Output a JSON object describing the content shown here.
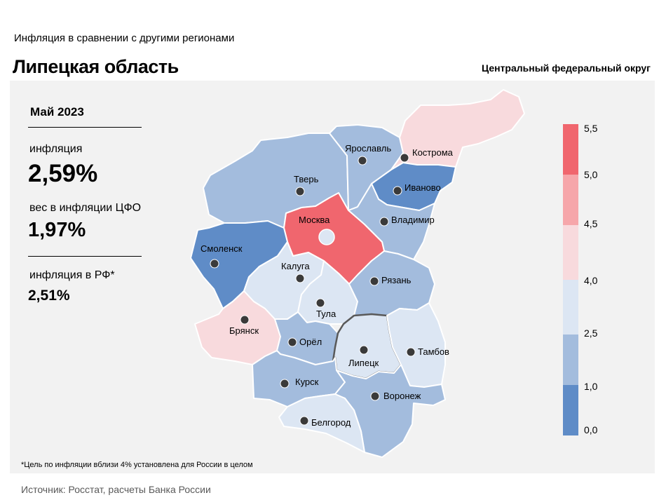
{
  "header": {
    "subtitle": "Инфляция  в сравнении  с другими  регионами",
    "title": "Липецкая область",
    "district": "Центральный федеральный округ"
  },
  "stats": {
    "period": "Май 2023",
    "inflation_label": "инфляция",
    "inflation_value": "2,59%",
    "weight_label": "вес в инфляции  ЦФО",
    "weight_value": "1,97%",
    "rf_label": "инфляция  в РФ*",
    "rf_value": "2,51%"
  },
  "legend": {
    "ticks": [
      "5,5",
      "5,0",
      "4,5",
      "4,0",
      "2,5",
      "1,0",
      "0,0"
    ],
    "colors": [
      "#f0666e",
      "#f6a6aa",
      "#f8dadd",
      "#dce6f3",
      "#a3bcdd",
      "#5f8cc7"
    ]
  },
  "map": {
    "regions": [
      {
        "id": "tver",
        "label": "Тверь",
        "color": "#a3bcdd"
      },
      {
        "id": "yaroslavl",
        "label": "Ярославль",
        "color": "#a3bcdd"
      },
      {
        "id": "kostroma",
        "label": "Кострома",
        "color": "#f8dadd"
      },
      {
        "id": "ivanovo",
        "label": "Иваново",
        "color": "#5f8cc7"
      },
      {
        "id": "vladimir",
        "label": "Владимир",
        "color": "#a3bcdd"
      },
      {
        "id": "moskva",
        "label": "Москва",
        "color": "#f0666e"
      },
      {
        "id": "smolensk",
        "label": "Смоленск",
        "color": "#5f8cc7"
      },
      {
        "id": "kaluga",
        "label": "Калуга",
        "color": "#dce6f3"
      },
      {
        "id": "tula",
        "label": "Тула",
        "color": "#dce6f3"
      },
      {
        "id": "ryazan",
        "label": "Рязань",
        "color": "#a3bcdd"
      },
      {
        "id": "bryansk",
        "label": "Брянск",
        "color": "#f8dadd"
      },
      {
        "id": "orel",
        "label": "Орёл",
        "color": "#a3bcdd"
      },
      {
        "id": "lipetsk",
        "label": "Липецк",
        "color": "#dce6f3"
      },
      {
        "id": "tambov",
        "label": "Тамбов",
        "color": "#dce6f3"
      },
      {
        "id": "kursk",
        "label": "Курск",
        "color": "#a3bcdd"
      },
      {
        "id": "voronezh",
        "label": "Воронеж",
        "color": "#a3bcdd"
      },
      {
        "id": "belgorod",
        "label": "Белгород",
        "color": "#dce6f3"
      }
    ]
  },
  "footnote": "*Цель по инфляции вблизи 4% установлена для России в целом",
  "source": "Источник: Росстат, расчеты Банка России"
}
